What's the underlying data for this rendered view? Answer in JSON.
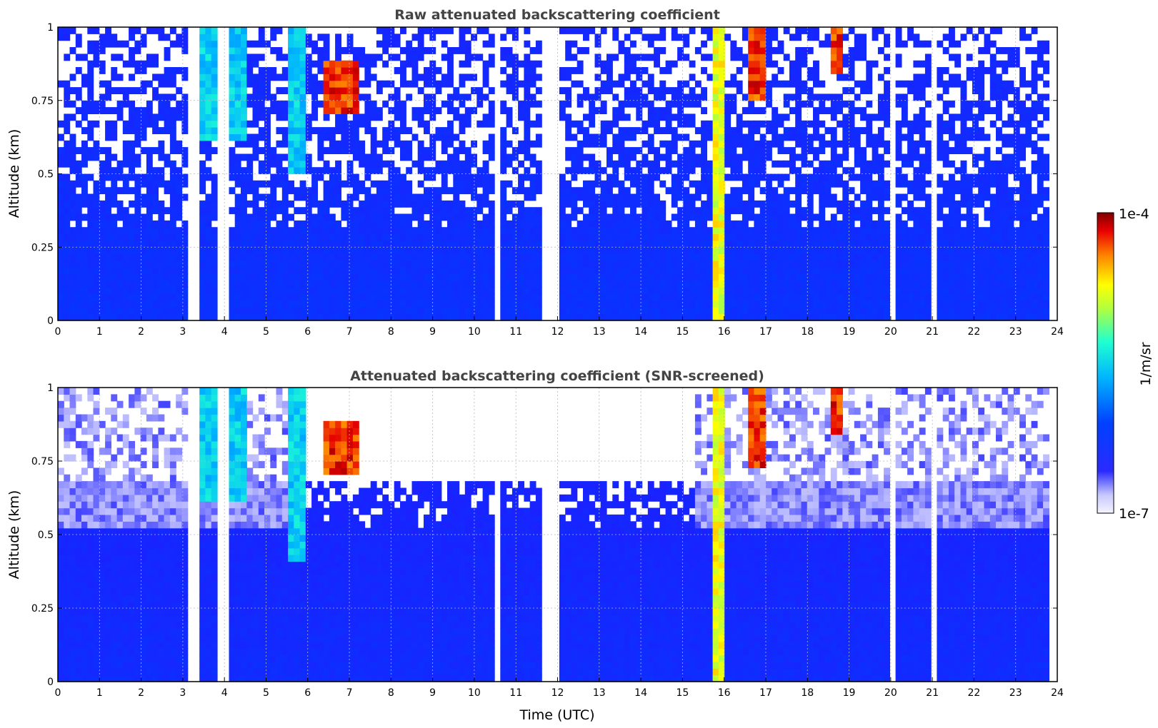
{
  "chart_data": [
    {
      "type": "heatmap",
      "title": "Raw attenuated backscattering coefficient",
      "xlabel": "",
      "ylabel": "Altitude (km)",
      "xlim": [
        0,
        24
      ],
      "ylim": [
        0,
        1
      ],
      "xticks": [
        "0",
        "1",
        "2",
        "3",
        "4",
        "5",
        "6",
        "7",
        "8",
        "9",
        "10",
        "11",
        "12",
        "13",
        "14",
        "15",
        "16",
        "17",
        "18",
        "19",
        "20",
        "21",
        "22",
        "23",
        "24"
      ],
      "yticks": [
        "0",
        "0.25",
        "0.5",
        "0.75",
        "1"
      ],
      "grid": true,
      "screened": false,
      "features": [
        {
          "x_range": [
            3.4,
            4.4
          ],
          "y_range": [
            0.6,
            1.0
          ],
          "level": "medium"
        },
        {
          "x_range": [
            5.6,
            5.9
          ],
          "y_range": [
            0.5,
            1.0
          ],
          "level": "medium"
        },
        {
          "x_range": [
            6.5,
            7.2
          ],
          "y_range": [
            0.69,
            0.87
          ],
          "level": "very high"
        },
        {
          "x_range": [
            15.8,
            16.0
          ],
          "y_range": [
            0.0,
            1.0
          ],
          "level": "high"
        },
        {
          "x_range": [
            16.6,
            16.9
          ],
          "y_range": [
            0.75,
            1.0
          ],
          "level": "very high"
        },
        {
          "x_range": [
            18.6,
            18.7
          ],
          "y_range": [
            0.82,
            0.98
          ],
          "level": "very high"
        }
      ],
      "data_gaps": [
        3.2,
        3.3,
        3.9,
        10.5,
        11.6,
        11.8,
        11.9,
        20.0,
        21.0
      ]
    },
    {
      "type": "heatmap",
      "title": "Attenuated backscattering coefficient (SNR-screened)",
      "xlabel": "Time (UTC)",
      "ylabel": "Altitude (km)",
      "xlim": [
        0,
        24
      ],
      "ylim": [
        0,
        1
      ],
      "xticks": [
        "0",
        "1",
        "2",
        "3",
        "4",
        "5",
        "6",
        "7",
        "8",
        "9",
        "10",
        "11",
        "12",
        "13",
        "14",
        "15",
        "16",
        "17",
        "18",
        "19",
        "20",
        "21",
        "22",
        "23",
        "24"
      ],
      "yticks": [
        "0",
        "0.25",
        "0.5",
        "0.75",
        "1"
      ],
      "grid": true,
      "screened": true,
      "features": [
        {
          "x_range": [
            3.4,
            4.4
          ],
          "y_range": [
            0.6,
            1.0
          ],
          "level": "medium"
        },
        {
          "x_range": [
            5.6,
            5.9
          ],
          "y_range": [
            0.4,
            1.0
          ],
          "level": "medium"
        },
        {
          "x_range": [
            6.5,
            7.2
          ],
          "y_range": [
            0.69,
            0.87
          ],
          "level": "very high"
        },
        {
          "x_range": [
            15.8,
            16.0
          ],
          "y_range": [
            0.0,
            1.0
          ],
          "level": "high"
        },
        {
          "x_range": [
            16.6,
            16.9
          ],
          "y_range": [
            0.72,
            1.0
          ],
          "level": "very high"
        },
        {
          "x_range": [
            18.6,
            18.7
          ],
          "y_range": [
            0.82,
            0.98
          ],
          "level": "very high"
        }
      ],
      "data_gaps": [
        3.2,
        3.3,
        3.9,
        10.5,
        11.6,
        11.8,
        11.9,
        20.0,
        21.0
      ]
    }
  ],
  "colorbar": {
    "label": "1/m/sr",
    "max_label": "1e-4",
    "min_label": "1e-7",
    "colormap": "jet",
    "low_color": "#f0f0ff"
  }
}
